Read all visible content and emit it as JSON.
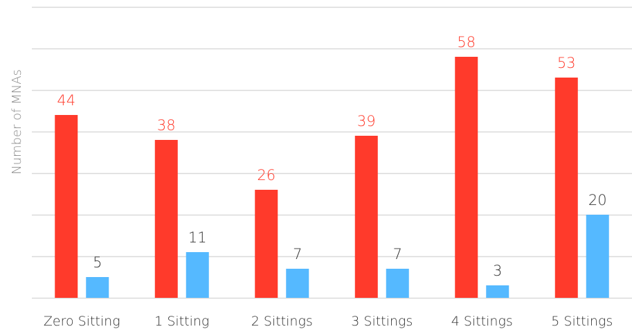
{
  "chart_data": {
    "type": "bar",
    "title": "",
    "xlabel": "",
    "ylabel": "Number of MNAs",
    "ylim": [
      0,
      70
    ],
    "grid": true,
    "categories": [
      "Zero Sitting",
      "1 Sitting",
      "2 Sittings",
      "3 Sittings",
      "4 Sittings",
      "5 Sittings"
    ],
    "series": [
      {
        "values": [
          44,
          38,
          26,
          39,
          58,
          53
        ],
        "color": "#ff3a2b",
        "label_color": "#ff3a2b"
      },
      {
        "values": [
          5,
          11,
          7,
          7,
          3,
          20
        ],
        "color": "#55b9ff",
        "label_color": "#333333"
      }
    ],
    "colors": {
      "grid": "#d9d9d9",
      "axis_label": "#8c8c8c"
    }
  }
}
